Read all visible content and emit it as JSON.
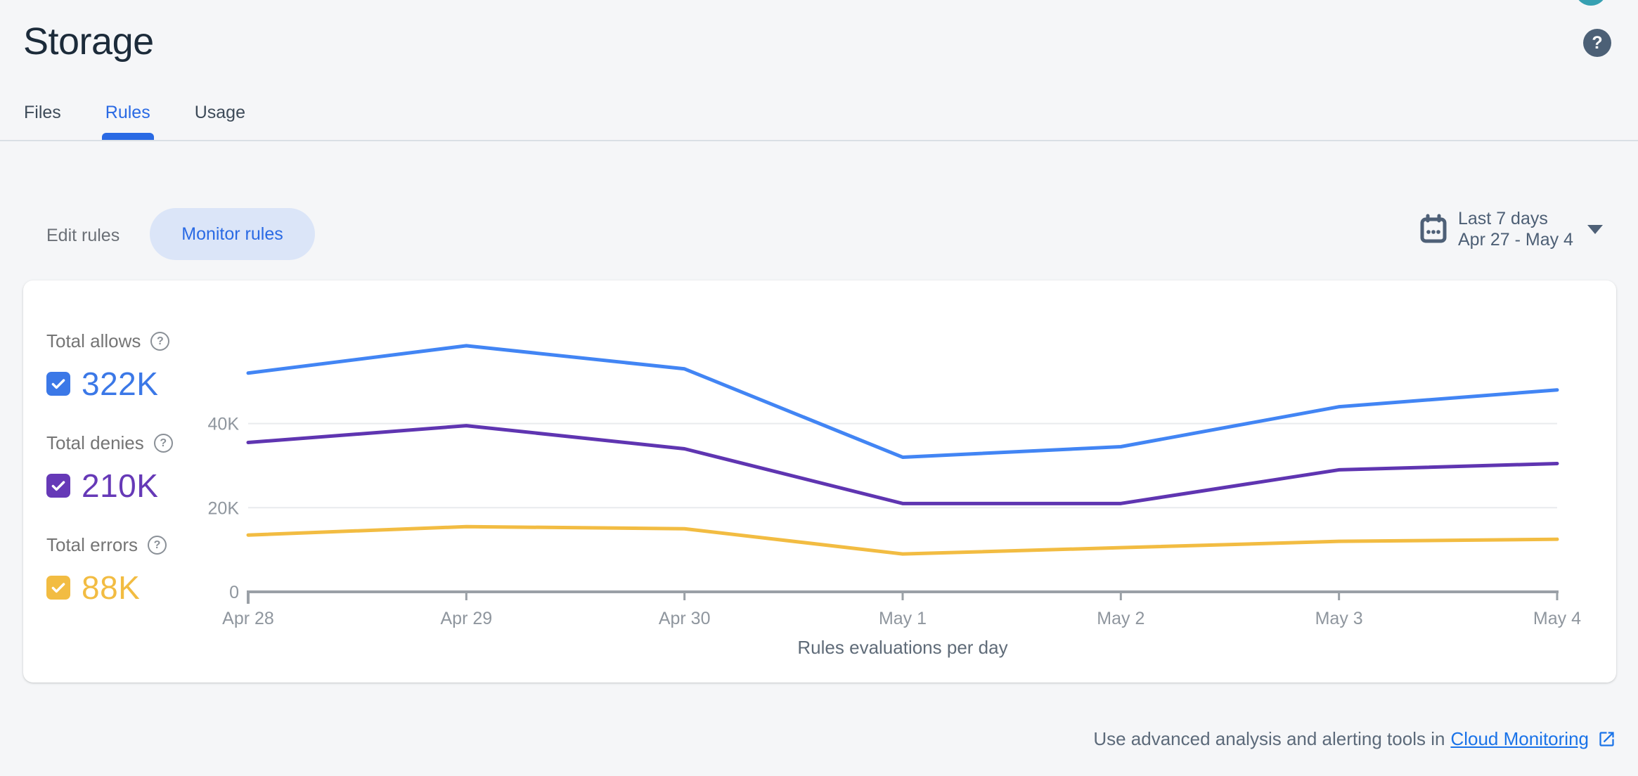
{
  "header": {
    "title": "Storage",
    "help_label": "?"
  },
  "tabs": [
    {
      "label": "Files",
      "active": false
    },
    {
      "label": "Rules",
      "active": true
    },
    {
      "label": "Usage",
      "active": false
    }
  ],
  "toolbar": {
    "edit_rules_label": "Edit rules",
    "monitor_rules_label": "Monitor rules"
  },
  "date_range": {
    "preset": "Last 7 days",
    "range": "Apr 27 - May 4"
  },
  "legend": [
    {
      "label": "Total allows",
      "value": "322K",
      "color": "#3b78e7",
      "checked": true
    },
    {
      "label": "Total denies",
      "value": "210K",
      "color": "#6639b7",
      "checked": true
    },
    {
      "label": "Total errors",
      "value": "88K",
      "color": "#f2bc42",
      "checked": true
    }
  ],
  "footer": {
    "text": "Use advanced analysis and alerting tools in",
    "link_label": "Cloud Monitoring"
  },
  "colors": {
    "accent_blue": "#2a6ae4",
    "pill_background": "#dbe5f8",
    "axis": "#9aa0a6",
    "gridline": "#e9ebee",
    "tick_label": "#8f969e"
  },
  "chart_data": {
    "type": "line",
    "x": [
      "Apr 28",
      "Apr 29",
      "Apr 30",
      "May 1",
      "May 2",
      "May 3",
      "May 4"
    ],
    "series": [
      {
        "name": "Total allows",
        "color": "#4285f4",
        "values": [
          52000,
          58500,
          53000,
          32000,
          34500,
          44000,
          48000
        ]
      },
      {
        "name": "Total denies",
        "color": "#5f35b1",
        "values": [
          35500,
          39500,
          34000,
          21000,
          21000,
          29000,
          30500
        ]
      },
      {
        "name": "Total errors",
        "color": "#f2bc42",
        "values": [
          13500,
          15500,
          15000,
          9000,
          10500,
          12000,
          12500
        ]
      }
    ],
    "title": "Rules evaluations per day",
    "xlabel": "Rules evaluations per day",
    "ylabel": "",
    "yticks": [
      {
        "value": 0,
        "label": "0"
      },
      {
        "value": 20000,
        "label": "20K"
      },
      {
        "value": 40000,
        "label": "40K"
      }
    ],
    "ylim": [
      0,
      63500
    ],
    "grid": true,
    "legend_position": "left"
  }
}
